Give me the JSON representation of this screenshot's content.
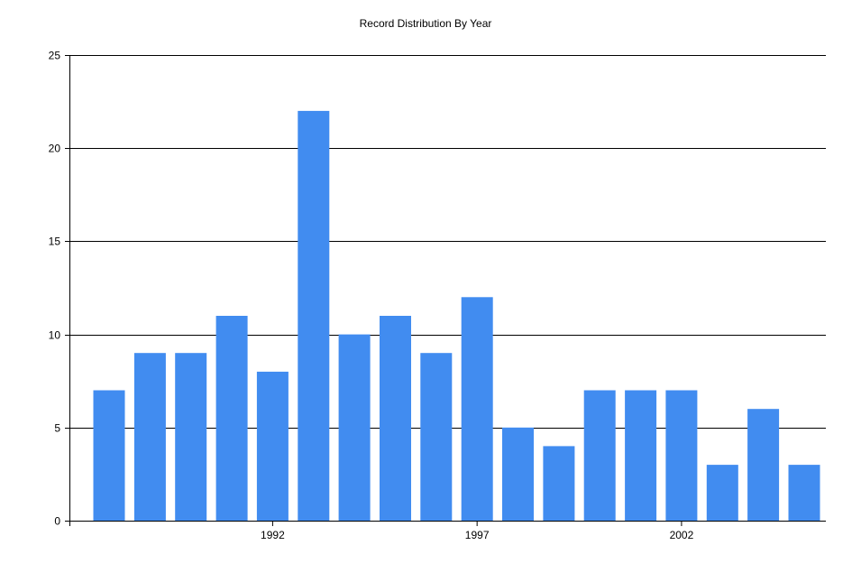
{
  "chart_data": {
    "type": "bar",
    "title": "Record Distribution By Year",
    "xlabel": "",
    "ylabel": "",
    "x": [
      1988,
      1989,
      1990,
      1991,
      1992,
      1993,
      1994,
      1995,
      1996,
      1997,
      1998,
      1999,
      2000,
      2001,
      2002,
      2003,
      2004,
      2005
    ],
    "values": [
      7,
      9,
      9,
      11,
      8,
      22,
      10,
      11,
      9,
      12,
      5,
      4,
      7,
      7,
      7,
      3,
      6,
      3
    ],
    "x_tick_labels": [
      "1992",
      "1997",
      "2002"
    ],
    "y_ticks": [
      0,
      5,
      10,
      15,
      20,
      25
    ],
    "ylim": [
      0,
      25
    ],
    "grid": true,
    "legend": "none",
    "bar_color": "#418CF0"
  }
}
